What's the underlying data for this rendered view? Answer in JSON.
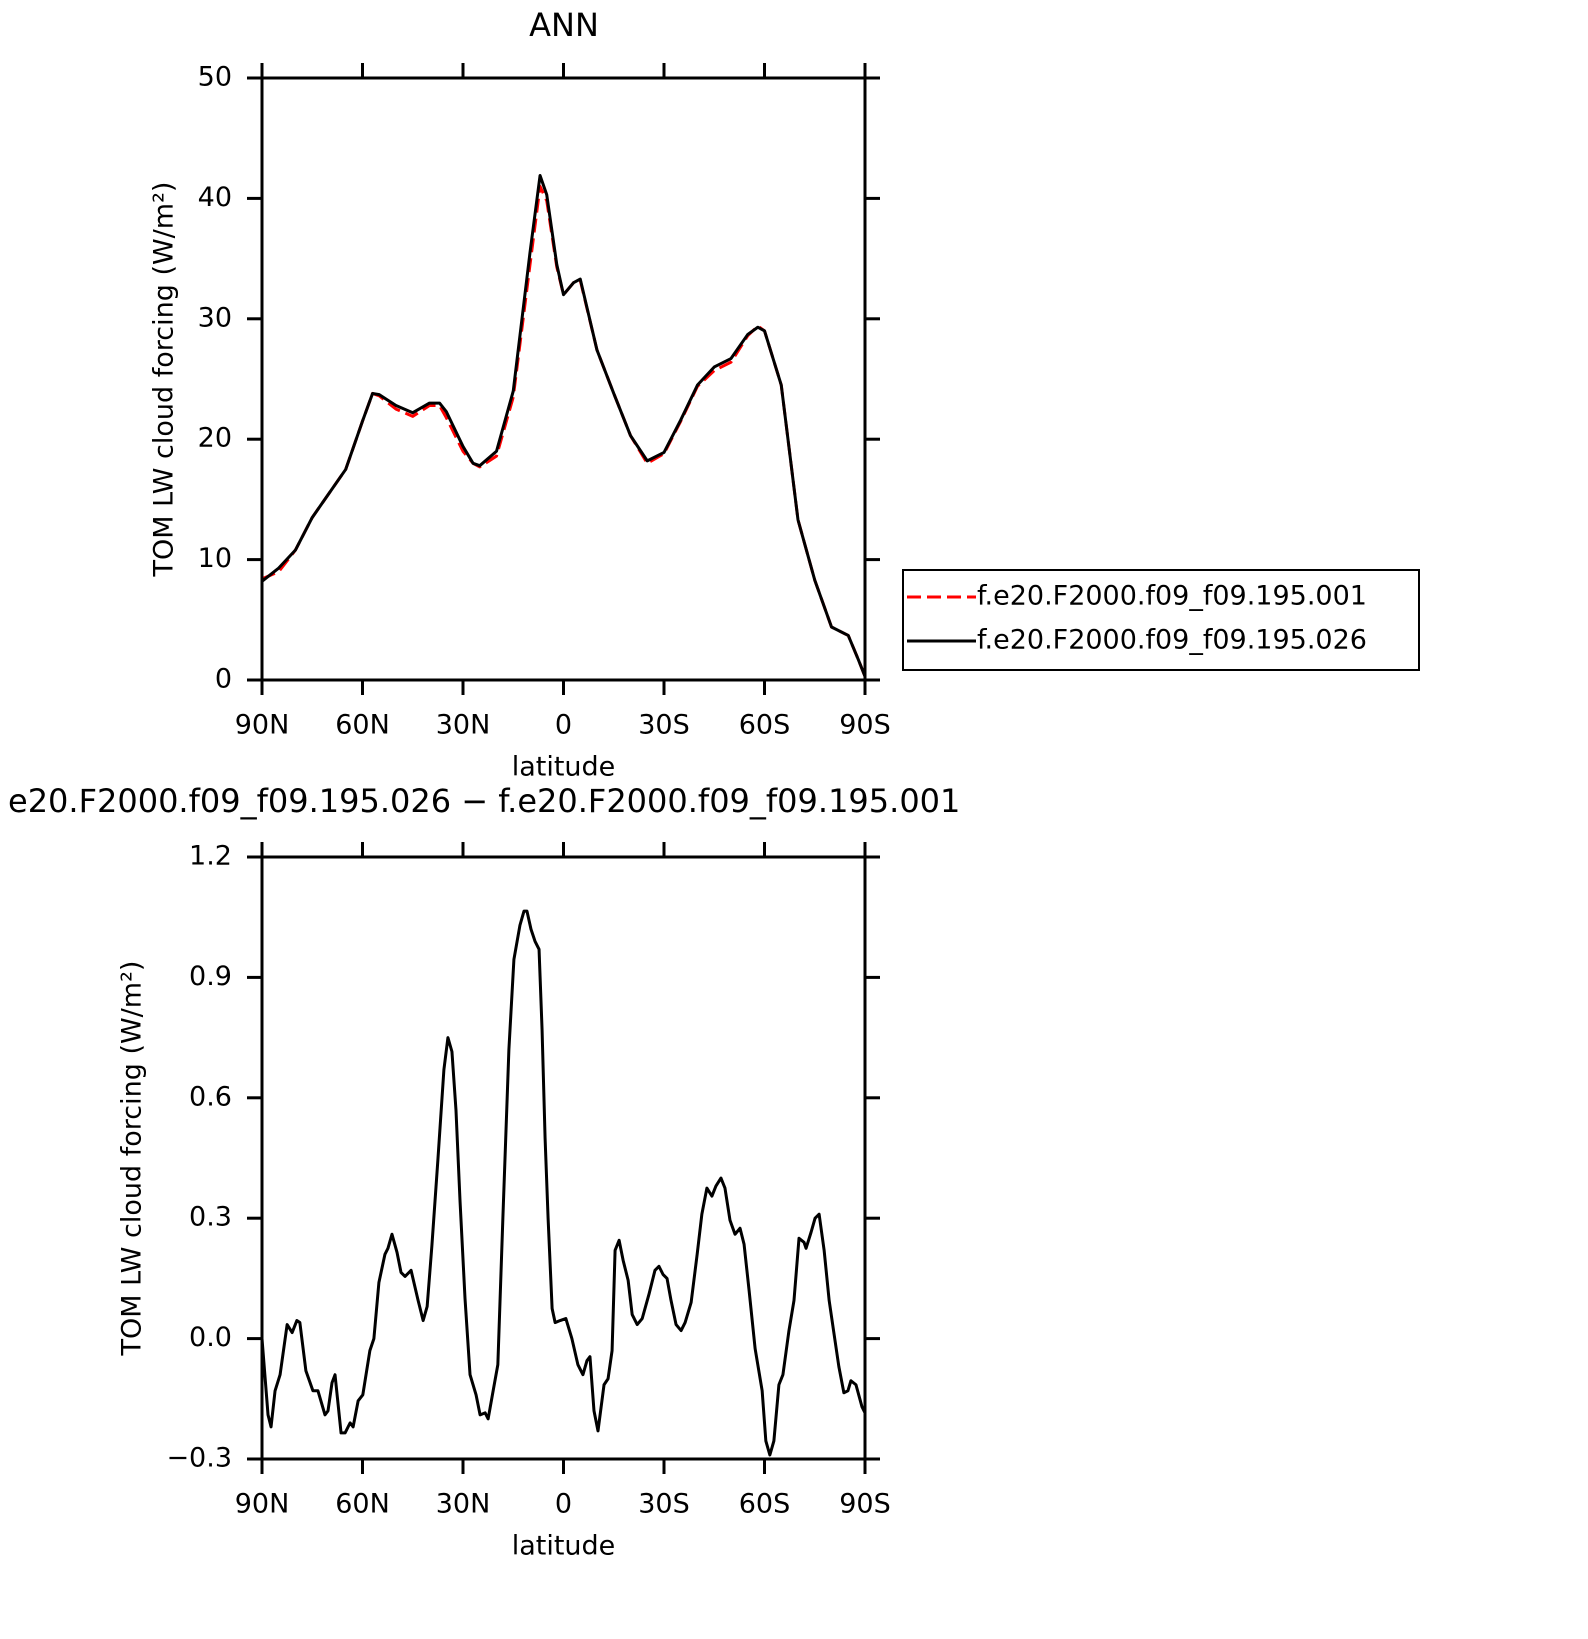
{
  "chart_data": [
    {
      "type": "line",
      "title": "ANN",
      "xlabel": "latitude",
      "ylabel": "TOM LW cloud forcing (W/m²)",
      "xlim": [
        90,
        -90
      ],
      "ylim": [
        0,
        50
      ],
      "xticks": [
        {
          "value": 90,
          "label": "90N"
        },
        {
          "value": 60,
          "label": "60N"
        },
        {
          "value": 30,
          "label": "30N"
        },
        0,
        {
          "value": -30,
          "label": "30S"
        },
        {
          "value": -60,
          "label": "60S"
        },
        {
          "value": -90,
          "label": "90S"
        }
      ],
      "yticks": [
        0,
        10,
        20,
        30,
        40,
        50
      ],
      "legend": "right",
      "x": [
        90,
        85,
        80,
        75,
        70,
        65,
        60,
        57,
        55,
        50,
        45,
        40,
        37,
        35,
        30,
        27,
        25,
        20,
        15,
        10,
        7,
        5,
        2,
        0,
        -3,
        -5,
        -10,
        -15,
        -20,
        -25,
        -30,
        -35,
        -40,
        -45,
        -50,
        -55,
        -58,
        -60,
        -65,
        -70,
        -75,
        -80,
        -85,
        -88,
        -90
      ],
      "series": [
        {
          "name": "f.e20.F2000.f09_f09.195.001",
          "color": "#ff0000",
          "linestyle": "dashed",
          "values": [
            8.4,
            9.0,
            10.8,
            13.5,
            15.5,
            17.5,
            21.5,
            23.8,
            23.6,
            22.5,
            21.9,
            22.8,
            22.8,
            21.8,
            19.0,
            18.0,
            17.7,
            18.6,
            23.5,
            34.5,
            41.0,
            39.8,
            34.3,
            32.0,
            33.0,
            33.2,
            27.4,
            23.8,
            20.3,
            18.0,
            18.8,
            21.5,
            24.4,
            25.7,
            26.4,
            28.6,
            29.4,
            29.0,
            24.5,
            13.3,
            8.3,
            4.4,
            3.7,
            1.7,
            0.3
          ]
        },
        {
          "name": "f.e20.F2000.f09_f09.195.026",
          "color": "#000000",
          "linestyle": "solid",
          "values": [
            8.2,
            9.3,
            10.8,
            13.5,
            15.5,
            17.5,
            21.5,
            23.8,
            23.7,
            22.8,
            22.2,
            23.0,
            23.0,
            22.3,
            19.4,
            18.0,
            17.8,
            19.0,
            24.0,
            35.5,
            41.9,
            40.3,
            34.5,
            32.0,
            33.0,
            33.3,
            27.4,
            23.8,
            20.3,
            18.2,
            18.9,
            21.6,
            24.5,
            26.0,
            26.7,
            28.7,
            29.3,
            29.0,
            24.5,
            13.3,
            8.3,
            4.4,
            3.7,
            1.7,
            0.3
          ]
        }
      ]
    },
    {
      "type": "line",
      "title": "e20.F2000.f09_f09.195.026 − f.e20.F2000.f09_f09.195.001",
      "xlabel": "latitude",
      "ylabel": "TOM LW cloud forcing (W/m²)",
      "xlim": [
        90,
        -90
      ],
      "ylim": [
        -0.3,
        1.2
      ],
      "xticks": [
        {
          "value": 90,
          "label": "90N"
        },
        {
          "value": 60,
          "label": "60N"
        },
        {
          "value": 30,
          "label": "30N"
        },
        0,
        {
          "value": -30,
          "label": "30S"
        },
        {
          "value": -60,
          "label": "60S"
        },
        {
          "value": -90,
          "label": "90S"
        }
      ],
      "yticks": [
        {
          "value": -0.3,
          "label": "−0.3"
        },
        {
          "value": 0,
          "label": "0.0"
        },
        0.3,
        0.6,
        0.9,
        1.2
      ],
      "x": [
        90,
        88.2,
        87.3,
        86.1,
        84.6,
        82.5,
        81,
        79.6,
        78.7,
        76.9,
        74.8,
        73.3,
        71.2,
        70.3,
        69.1,
        68.2,
        66.4,
        65.2,
        63.7,
        62.8,
        61.3,
        59.9,
        57.8,
        56.6,
        55.1,
        53.3,
        52.4,
        51.2,
        49.7,
        48.5,
        47.3,
        45.5,
        43.4,
        41.9,
        40.7,
        39.3,
        37.5,
        35.7,
        34.5,
        33.3,
        32.1,
        30.9,
        29.4,
        27.9,
        26.1,
        24.9,
        23.4,
        22.5,
        21,
        19.6,
        18.1,
        16.3,
        14.8,
        13,
        11.8,
        10.9,
        9.7,
        8.5,
        7.3,
        6.4,
        5.5,
        4.6,
        3.4,
        2.5,
        1,
        -0.7,
        -2.5,
        -4.3,
        -5.8,
        -7,
        -7.9,
        -9.1,
        -10.3,
        -12.1,
        -13.3,
        -14.5,
        -15.4,
        -16.6,
        -17.8,
        -19.3,
        -20.5,
        -22,
        -23.5,
        -25.5,
        -27.3,
        -28.5,
        -29.7,
        -30.9,
        -32.1,
        -33.6,
        -35.1,
        -36.3,
        -38.1,
        -39.9,
        -41.3,
        -42.8,
        -44.3,
        -45.5,
        -47,
        -48.2,
        -49.7,
        -51.2,
        -52.7,
        -53.9,
        -55.4,
        -57.2,
        -59.3,
        -60.4,
        -61.6,
        -62.8,
        -64.3,
        -65.5,
        -67.3,
        -68.8,
        -70.3,
        -71.8,
        -72.4,
        -73.9,
        -75.1,
        -76.3,
        -77.8,
        -79.3,
        -80.7,
        -82.2,
        -83.7,
        -84.9,
        -85.8,
        -87.3,
        -89.1,
        -90
      ],
      "series": [
        {
          "color": "#000000",
          "linestyle": "solid",
          "values": [
            0,
            -0.19,
            -0.22,
            -0.13,
            -0.09,
            0.035,
            0.015,
            0.045,
            0.04,
            -0.08,
            -0.13,
            -0.13,
            -0.19,
            -0.18,
            -0.11,
            -0.09,
            -0.235,
            -0.235,
            -0.21,
            -0.22,
            -0.155,
            -0.14,
            -0.03,
            0,
            0.14,
            0.21,
            0.225,
            0.26,
            0.215,
            0.165,
            0.155,
            0.17,
            0.095,
            0.045,
            0.08,
            0.23,
            0.445,
            0.67,
            0.75,
            0.715,
            0.57,
            0.345,
            0.1,
            -0.09,
            -0.14,
            -0.19,
            -0.185,
            -0.2,
            -0.13,
            -0.065,
            0.3,
            0.72,
            0.945,
            1.03,
            1.065,
            1.065,
            1.02,
            0.99,
            0.97,
            0.77,
            0.5,
            0.3,
            0.075,
            0.04,
            0.045,
            0.05,
            0,
            -0.065,
            -0.09,
            -0.055,
            -0.045,
            -0.18,
            -0.23,
            -0.115,
            -0.1,
            -0.03,
            0.22,
            0.245,
            0.195,
            0.145,
            0.06,
            0.035,
            0.05,
            0.11,
            0.17,
            0.18,
            0.16,
            0.15,
            0.095,
            0.035,
            0.02,
            0.04,
            0.09,
            0.21,
            0.31,
            0.375,
            0.355,
            0.38,
            0.4,
            0.375,
            0.295,
            0.26,
            0.275,
            0.235,
            0.12,
            -0.025,
            -0.13,
            -0.255,
            -0.29,
            -0.255,
            -0.115,
            -0.09,
            0.02,
            0.095,
            0.25,
            0.24,
            0.225,
            0.265,
            0.3,
            0.31,
            0.22,
            0.095,
            0.015,
            -0.07,
            -0.135,
            -0.13,
            -0.105,
            -0.115,
            -0.17,
            -0.185
          ]
        }
      ]
    }
  ]
}
